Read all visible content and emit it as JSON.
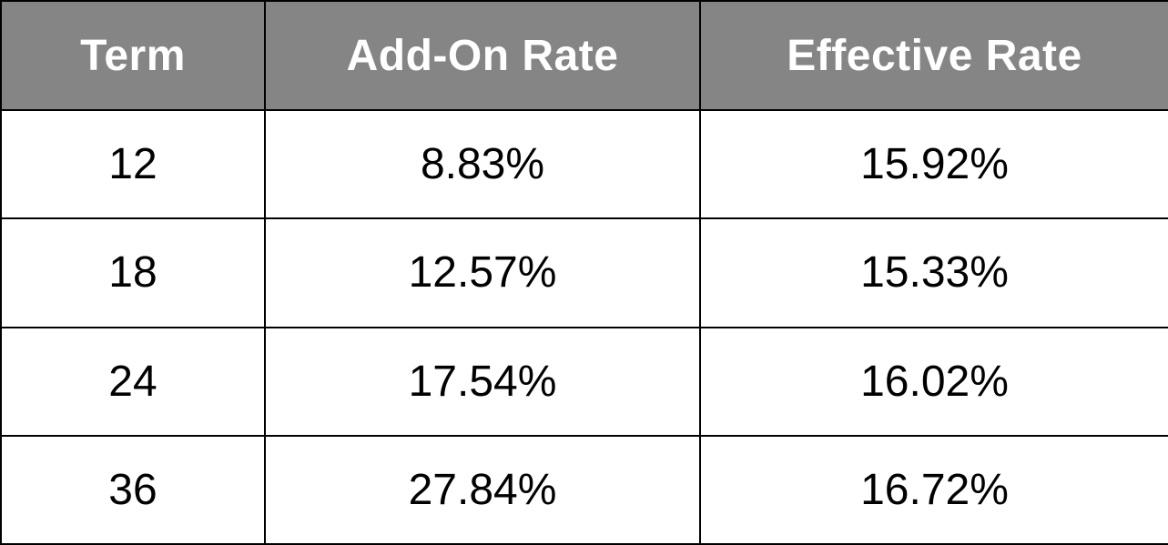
{
  "table": {
    "headers": [
      "Term",
      "Add-On Rate",
      "Effective Rate"
    ],
    "rows": [
      {
        "term": "12",
        "add_on_rate": "8.83%",
        "effective_rate": "15.92%"
      },
      {
        "term": "18",
        "add_on_rate": "12.57%",
        "effective_rate": "15.33%"
      },
      {
        "term": "24",
        "add_on_rate": "17.54%",
        "effective_rate": "16.02%"
      },
      {
        "term": "36",
        "add_on_rate": "27.84%",
        "effective_rate": "16.72%"
      }
    ]
  },
  "colors": {
    "header_background": "#858585",
    "header_text": "#ffffff",
    "border": "#000000",
    "cell_text": "#000000"
  }
}
